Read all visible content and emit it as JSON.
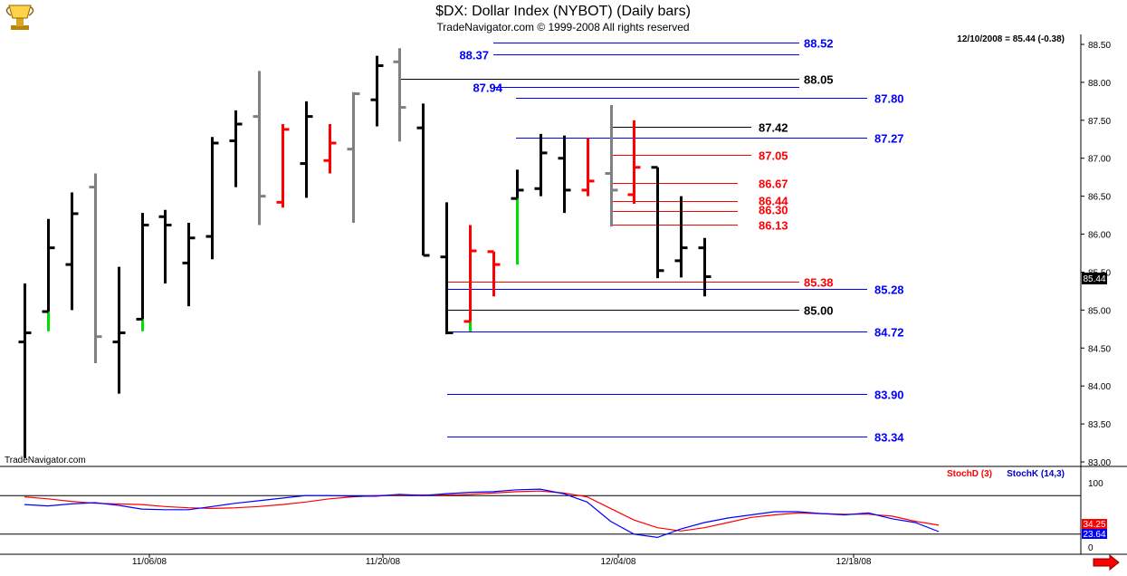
{
  "header": {
    "title": "$DX:  Dollar Index (NYBOT)  (Daily bars)",
    "subtitle": "TradeNavigator.com © 1999-2008 All rights reserved",
    "last_quote": "12/10/2008 = 85.44 (-0.38)",
    "watermark": "TradeNavigator.com",
    "logo_icon": "trophy-icon"
  },
  "colors": {
    "black": "#000000",
    "gray": "#808080",
    "red": "#ff0000",
    "green": "#00e000",
    "blue": "#0000c8",
    "level_black": "#000000",
    "level_red": "#ff0000",
    "level_blue": "#0000ff",
    "stoch_d": "#ff0000",
    "stoch_k": "#0000ff"
  },
  "chart_data": [
    {
      "type": "ohlc",
      "title": "$DX:  Dollar Index (NYBOT)  (Daily bars)",
      "ylim": [
        83.0,
        88.6
      ],
      "y_ticks": [
        "88.50",
        "88.00",
        "87.50",
        "87.00",
        "86.50",
        "86.00",
        "85.50",
        "85.00",
        "84.50",
        "84.00",
        "83.50",
        "83.00"
      ],
      "x_ticks": [
        "11/06/08",
        "11/20/08",
        "12/04/08",
        "12/18/08"
      ],
      "last_price_label": "85.44",
      "bars": [
        {
          "o": 84.58,
          "h": 85.35,
          "l": 83.05,
          "c": 84.7,
          "color": "black"
        },
        {
          "o": 84.98,
          "h": 86.2,
          "l": 84.72,
          "c": 85.82,
          "color": "black",
          "low_color": "green"
        },
        {
          "o": 85.6,
          "h": 86.55,
          "l": 85.0,
          "c": 86.27,
          "color": "black"
        },
        {
          "o": 86.62,
          "h": 86.8,
          "l": 84.3,
          "c": 84.65,
          "color": "gray"
        },
        {
          "o": 84.58,
          "h": 85.57,
          "l": 83.9,
          "c": 84.7,
          "color": "black"
        },
        {
          "o": 84.88,
          "h": 86.28,
          "l": 84.72,
          "c": 86.12,
          "color": "black",
          "low_color": "green"
        },
        {
          "o": 86.23,
          "h": 86.32,
          "l": 85.35,
          "c": 86.12,
          "color": "black"
        },
        {
          "o": 85.62,
          "h": 86.15,
          "l": 85.05,
          "c": 85.95,
          "color": "black"
        },
        {
          "o": 85.97,
          "h": 87.28,
          "l": 85.67,
          "c": 87.2,
          "color": "black"
        },
        {
          "o": 87.23,
          "h": 87.63,
          "l": 86.62,
          "c": 87.45,
          "color": "black"
        },
        {
          "o": 87.55,
          "h": 88.15,
          "l": 86.12,
          "c": 86.5,
          "color": "gray"
        },
        {
          "o": 86.42,
          "h": 87.45,
          "l": 86.35,
          "c": 87.38,
          "color": "red"
        },
        {
          "o": 86.93,
          "h": 87.75,
          "l": 86.48,
          "c": 87.55,
          "color": "black"
        },
        {
          "o": 86.97,
          "h": 87.45,
          "l": 86.8,
          "c": 87.2,
          "color": "red"
        },
        {
          "o": 87.12,
          "h": 87.87,
          "l": 86.15,
          "c": 87.85,
          "color": "gray"
        },
        {
          "o": 87.77,
          "h": 88.35,
          "l": 87.42,
          "c": 88.22,
          "color": "black"
        },
        {
          "o": 88.27,
          "h": 88.45,
          "l": 87.22,
          "c": 87.67,
          "color": "gray"
        },
        {
          "o": 87.4,
          "h": 87.72,
          "l": 85.72,
          "c": 85.72,
          "color": "black"
        },
        {
          "o": 85.7,
          "h": 86.42,
          "l": 84.68,
          "c": 84.7,
          "color": "black"
        },
        {
          "o": 84.85,
          "h": 86.12,
          "l": 84.72,
          "c": 85.78,
          "color": "red",
          "low_color": "green"
        },
        {
          "o": 85.77,
          "h": 85.77,
          "l": 85.18,
          "c": 85.6,
          "color": "red"
        },
        {
          "o": 86.47,
          "h": 86.85,
          "l": 85.6,
          "c": 86.58,
          "color": "black",
          "low_color": "green"
        },
        {
          "o": 86.6,
          "h": 87.32,
          "l": 86.5,
          "c": 87.07,
          "color": "black"
        },
        {
          "o": 87.0,
          "h": 87.3,
          "l": 86.28,
          "c": 86.58,
          "color": "black"
        },
        {
          "o": 86.58,
          "h": 87.27,
          "l": 86.5,
          "c": 86.7,
          "color": "red"
        },
        {
          "o": 86.8,
          "h": 87.7,
          "l": 86.1,
          "c": 86.58,
          "color": "gray"
        },
        {
          "o": 86.52,
          "h": 87.5,
          "l": 86.4,
          "c": 86.88,
          "color": "red"
        },
        {
          "o": 86.88,
          "h": 86.88,
          "l": 85.42,
          "c": 85.52,
          "color": "black"
        },
        {
          "o": 85.65,
          "h": 86.5,
          "l": 85.43,
          "c": 85.82,
          "color": "black"
        },
        {
          "o": 85.82,
          "h": 85.95,
          "l": 85.18,
          "c": 85.44,
          "color": "black"
        }
      ],
      "levels": [
        {
          "value": 88.52,
          "label": "88.52",
          "color": "blue"
        },
        {
          "value": 88.37,
          "label": "88.37",
          "color": "blue"
        },
        {
          "value": 88.05,
          "label": "88.05",
          "color": "black"
        },
        {
          "value": 87.94,
          "label": "87.94",
          "color": "blue"
        },
        {
          "value": 87.8,
          "label": "87.80",
          "color": "blue"
        },
        {
          "value": 87.42,
          "label": "87.42",
          "color": "black"
        },
        {
          "value": 87.27,
          "label": "87.27",
          "color": "blue"
        },
        {
          "value": 87.05,
          "label": "87.05",
          "color": "red"
        },
        {
          "value": 86.67,
          "label": "86.67",
          "color": "red"
        },
        {
          "value": 86.44,
          "label": "86.44",
          "color": "red"
        },
        {
          "value": 86.3,
          "label": "86.30",
          "color": "red"
        },
        {
          "value": 86.13,
          "label": "86.13",
          "color": "red"
        },
        {
          "value": 85.38,
          "label": "85.38",
          "color": "red"
        },
        {
          "value": 85.28,
          "label": "85.28",
          "color": "blue"
        },
        {
          "value": 85.0,
          "label": "85.00",
          "color": "black"
        },
        {
          "value": 84.72,
          "label": "84.72",
          "color": "blue"
        },
        {
          "value": 83.9,
          "label": "83.90",
          "color": "blue"
        },
        {
          "value": 83.34,
          "label": "83.34",
          "color": "blue"
        }
      ]
    },
    {
      "type": "line",
      "ylim": [
        0,
        100
      ],
      "y_ticks": [
        "100",
        "0"
      ],
      "reference_lines": [
        80,
        20
      ],
      "legend": [
        "StochD (3)",
        "StochK (14,3)"
      ],
      "last_values": {
        "stoch_d": "34.25",
        "stoch_k": "23.64"
      },
      "series": [
        {
          "name": "StochD (3)",
          "color": "red",
          "values": [
            78,
            75,
            71,
            68,
            67,
            66,
            63,
            61,
            60,
            61,
            63,
            66,
            70,
            75,
            78,
            80,
            81,
            81,
            81,
            82,
            84,
            86,
            87,
            84,
            78,
            60,
            42,
            30,
            25,
            30,
            38,
            46,
            50,
            53,
            52,
            51,
            51,
            48,
            40,
            34
          ]
        },
        {
          "name": "StochK (14,3)",
          "color": "blue",
          "values": [
            66,
            64,
            67,
            69,
            65,
            59,
            58,
            58,
            63,
            68,
            72,
            76,
            80,
            80,
            79,
            79,
            82,
            80,
            83,
            85,
            86,
            89,
            90,
            83,
            70,
            40,
            20,
            15,
            28,
            38,
            45,
            50,
            55,
            55,
            52,
            50,
            53,
            44,
            38,
            24
          ]
        }
      ]
    }
  ]
}
